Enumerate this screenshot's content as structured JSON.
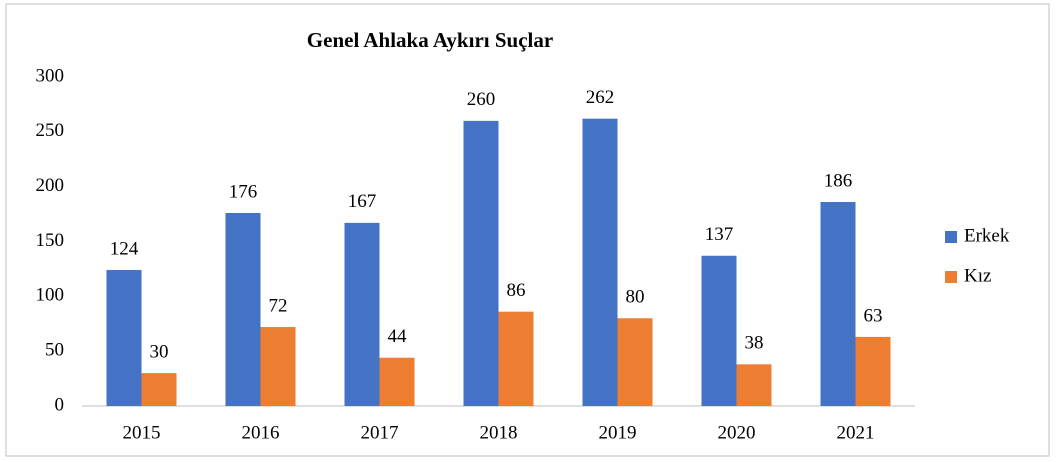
{
  "chart_data": {
    "type": "bar",
    "title": "Genel Ahlaka Aykırı Suçlar",
    "categories": [
      "2015",
      "2016",
      "2017",
      "2018",
      "2019",
      "2020",
      "2021"
    ],
    "series": [
      {
        "name": "Erkek",
        "color": "#4472c4",
        "values": [
          124,
          176,
          167,
          260,
          262,
          137,
          186
        ]
      },
      {
        "name": "Kız",
        "color": "#ed7d31",
        "values": [
          30,
          72,
          44,
          86,
          80,
          38,
          63
        ]
      }
    ],
    "ylim": [
      0,
      300
    ],
    "yticks": [
      0,
      50,
      100,
      150,
      200,
      250,
      300
    ],
    "grid": false,
    "legend": "right"
  }
}
